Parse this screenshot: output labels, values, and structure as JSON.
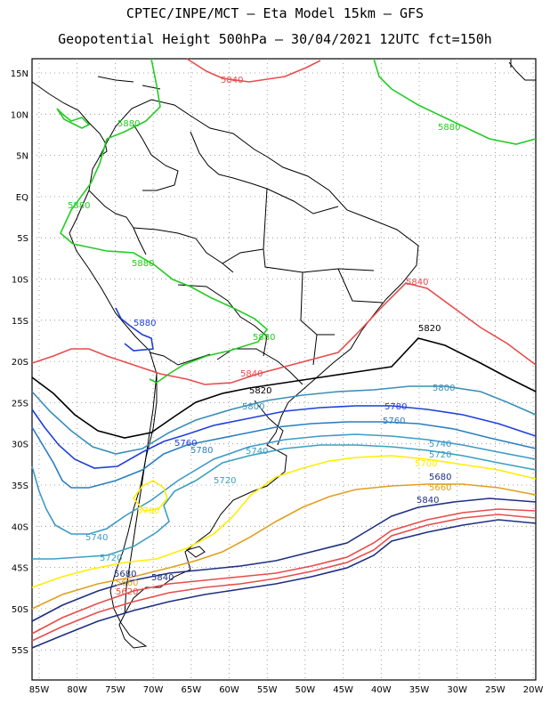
{
  "header": {
    "line1": "CPTEC/INPE/MCT –  Eta Model 15km – GFS",
    "line2": "Geopotential Height 500hPa – 30/04/2021 12UTC fct=150h"
  },
  "axes": {
    "lat_labels": [
      "15N",
      "10N",
      "5N",
      "EQ",
      "5S",
      "10S",
      "15S",
      "20S",
      "25S",
      "30S",
      "35S",
      "40S",
      "45S",
      "50S",
      "55S"
    ],
    "lon_labels": [
      "85W",
      "80W",
      "75W",
      "70W",
      "65W",
      "60W",
      "55W",
      "50W",
      "45W",
      "40W",
      "35W",
      "30W",
      "25W",
      "20W"
    ]
  },
  "colors": {
    "c5880": "#22cc22",
    "c5840": "#e84c4c",
    "c5820": "#000000",
    "c5800": "#3a8fb7",
    "c5780": "#1f3fdc",
    "c5760": "#2a7fc0",
    "c5740": "#3d9ac7",
    "c5720": "#3aa0c0",
    "c5700": "#ffee00",
    "c5680": "#e0a020",
    "c5660": "#1f2f80",
    "coast": "#000000"
  },
  "contour_labels": [
    {
      "id": "l5840a",
      "text": "5840",
      "color": "c5840"
    },
    {
      "id": "l5880a",
      "text": "5880",
      "color": "c5880"
    },
    {
      "id": "l5880b",
      "text": "5880",
      "color": "c5880"
    },
    {
      "id": "l5880c",
      "text": "5880",
      "color": "c5880"
    },
    {
      "id": "l5880d",
      "text": "5880",
      "color": "c5880"
    },
    {
      "id": "l5880e",
      "text": "5880",
      "color": "c5880"
    },
    {
      "id": "l5880f",
      "text": "5880",
      "color": "c5780"
    },
    {
      "id": "l5840b",
      "text": "5840",
      "color": "c5840"
    },
    {
      "id": "l5820a",
      "text": "5820",
      "color": "c5820"
    },
    {
      "id": "l5840c",
      "text": "5840",
      "color": "c5840"
    },
    {
      "id": "l5820b",
      "text": "5820",
      "color": "c5820"
    },
    {
      "id": "l5800a",
      "text": "5800",
      "color": "c5800"
    },
    {
      "id": "l5800b",
      "text": "5800",
      "color": "c5800"
    },
    {
      "id": "l5780a",
      "text": "5780",
      "color": "c5780"
    },
    {
      "id": "l5760a",
      "text": "5760",
      "color": "c5760"
    },
    {
      "id": "l5760b",
      "text": "5760",
      "color": "c5780"
    },
    {
      "id": "l5780b",
      "text": "5780",
      "color": "c5760"
    },
    {
      "id": "l5740a",
      "text": "5740",
      "color": "c5740"
    },
    {
      "id": "l5740b",
      "text": "5740",
      "color": "c5740"
    },
    {
      "id": "l5720a",
      "text": "5720",
      "color": "c5720"
    },
    {
      "id": "l5720b",
      "text": "5720",
      "color": "c5720"
    },
    {
      "id": "l5700a",
      "text": "5700",
      "color": "c5700"
    },
    {
      "id": "l5680a",
      "text": "5680",
      "color": "c5660"
    },
    {
      "id": "l5660a",
      "text": "5660",
      "color": "c5680"
    },
    {
      "id": "l5840d",
      "text": "5840",
      "color": "c5660"
    },
    {
      "id": "l5740c",
      "text": "5740",
      "color": "c5740"
    },
    {
      "id": "l5720c",
      "text": "5720",
      "color": "c5720"
    },
    {
      "id": "l5700b",
      "text": "5700",
      "color": "c5700"
    },
    {
      "id": "l5680b",
      "text": "5680",
      "color": "c5660"
    },
    {
      "id": "l5660b",
      "text": "5660",
      "color": "c5680"
    },
    {
      "id": "l5620a",
      "text": "5620",
      "color": "c5840"
    },
    {
      "id": "l5840e",
      "text": "5840",
      "color": "c5660"
    }
  ]
}
